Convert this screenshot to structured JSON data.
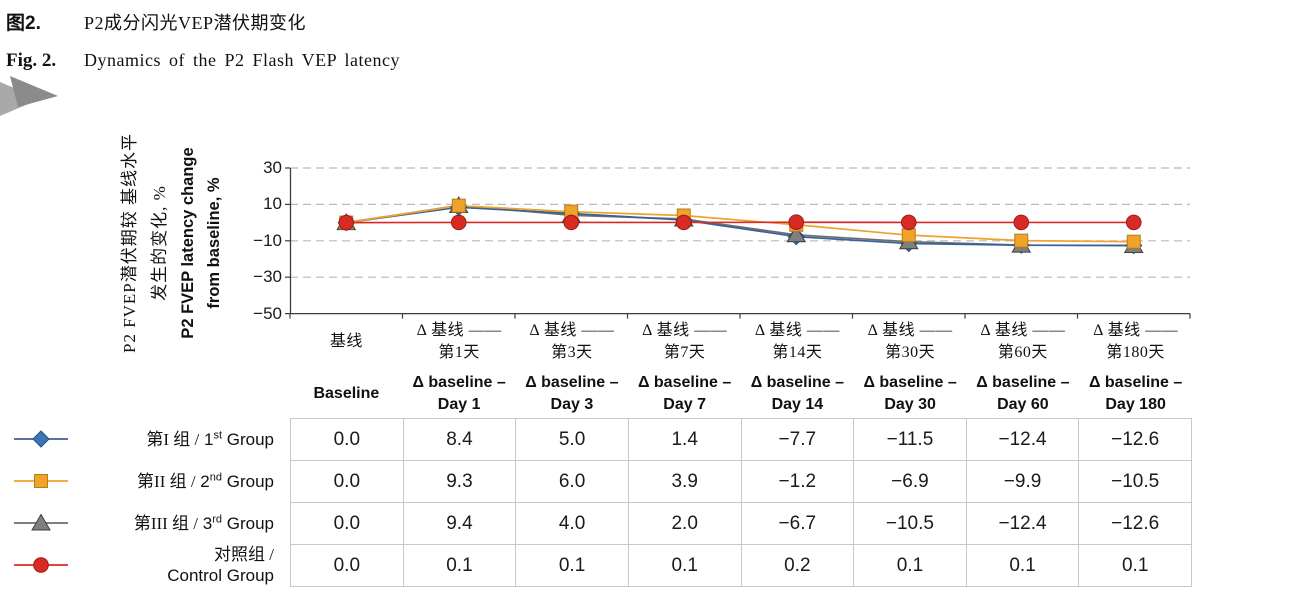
{
  "figure": {
    "label_cn": "图2.",
    "title_cn": "P2成分闪光VEP潜伏期变化",
    "label_en": "Fig. 2.",
    "title_en": "Dynamics of the P2 Flash VEP latency"
  },
  "chart_data": {
    "type": "line",
    "title": "Dynamics of the P2 Flash VEP latency",
    "y_axis": {
      "label_cn_line1": "P2 FVEP潜伏期较 基线水平",
      "label_cn_line2": "发生的变化, %",
      "label_en_line1": "P2 FVEP latency change",
      "label_en_line2": "from baseline, %",
      "range": [
        -50,
        30
      ],
      "ticks": [
        30,
        10,
        -10,
        -30,
        -50
      ],
      "gridlines": [
        30,
        10,
        -10,
        -30
      ],
      "grid_style": "dashed"
    },
    "x_axis": {
      "categories": [
        {
          "cn1": "基线",
          "cn2": "",
          "en1": "Baseline",
          "en2": ""
        },
        {
          "cn1": "Δ 基线 ——",
          "cn2": "第1天",
          "en1": "Δ baseline –",
          "en2": "Day 1"
        },
        {
          "cn1": "Δ 基线 ——",
          "cn2": "第3天",
          "en1": "Δ baseline –",
          "en2": "Day 3"
        },
        {
          "cn1": "Δ 基线 ——",
          "cn2": "第7天",
          "en1": "Δ baseline –",
          "en2": "Day 7"
        },
        {
          "cn1": "Δ 基线 ——",
          "cn2": "第14天",
          "en1": "Δ baseline –",
          "en2": "Day 14"
        },
        {
          "cn1": "Δ 基线 ——",
          "cn2": "第30天",
          "en1": "Δ baseline –",
          "en2": "Day 30"
        },
        {
          "cn1": "Δ 基线 ——",
          "cn2": "第60天",
          "en1": "Δ baseline –",
          "en2": "Day 60"
        },
        {
          "cn1": "Δ 基线 ——",
          "cn2": "第180天",
          "en1": "Δ baseline –",
          "en2": "Day 180"
        }
      ]
    },
    "series": [
      {
        "id": "group-1",
        "marker": "diamond",
        "color": "#3a76b5",
        "edge_color": "#24517f",
        "line_color": "#38639a",
        "legend": {
          "cn": "第I 组 /",
          "en_pre": "1",
          "en_sup": "st",
          "en_post": " Group",
          "two_line": false
        },
        "values": [
          0.0,
          8.4,
          5.0,
          1.4,
          -7.7,
          -11.5,
          -12.4,
          -12.6
        ]
      },
      {
        "id": "group-2",
        "marker": "square",
        "color": "#f0a32a",
        "edge_color": "#bb7a12",
        "line_color": "#efa22d",
        "legend": {
          "cn": "第II 组 /",
          "en_pre": "2",
          "en_sup": "nd",
          "en_post": " Group",
          "two_line": false
        },
        "values": [
          0.0,
          9.3,
          6.0,
          3.9,
          -1.2,
          -6.9,
          -9.9,
          -10.5
        ]
      },
      {
        "id": "group-3",
        "marker": "triangle",
        "color": "#7f7f7f",
        "edge_color": "#3f3f3f",
        "line_color": "#6d6d6d",
        "legend": {
          "cn": "第III 组 /",
          "en_pre": "3",
          "en_sup": "rd",
          "en_post": " Group",
          "two_line": false
        },
        "values": [
          0.0,
          9.4,
          4.0,
          2.0,
          -6.7,
          -10.5,
          -12.4,
          -12.6
        ]
      },
      {
        "id": "control",
        "marker": "circle",
        "color": "#d92b25",
        "edge_color": "#9c1c16",
        "line_color": "#d92b25",
        "legend": {
          "cn": "对照组 /",
          "en_pre": "Control Group",
          "en_sup": "",
          "en_post": "",
          "two_line": true
        },
        "values": [
          0.0,
          0.1,
          0.1,
          0.1,
          0.2,
          0.1,
          0.1,
          0.1
        ]
      }
    ],
    "legend_position": "left-of-table"
  }
}
